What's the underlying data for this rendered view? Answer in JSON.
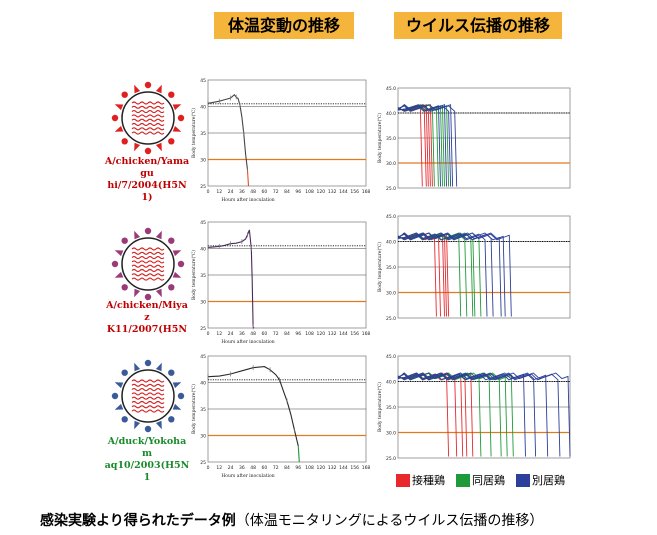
{
  "headers": {
    "left": "体温変動の推移",
    "right": "ウイルス伝播の推移"
  },
  "viruses": [
    {
      "name_lines": [
        "A/chicken/Yamagu",
        "hi/7/2004(H5N1)"
      ],
      "label_color": "#c00000",
      "spike_color": "#e02020"
    },
    {
      "name_lines": [
        "A/chicken/Miyaz",
        "K11/2007(H5N"
      ],
      "label_color": "#c00000",
      "spike_color": "#9a3a7a"
    },
    {
      "name_lines": [
        "A/duck/Yokoham",
        "aq10/2003(H5N1"
      ],
      "label_color": "#1a8a2a",
      "spike_color": "#3a5a9a"
    }
  ],
  "legend": [
    {
      "label": "接種鶏",
      "color": "#e8282d"
    },
    {
      "label": "同居鶏",
      "color": "#1e9a3a"
    },
    {
      "label": "別居鶏",
      "color": "#2c3f9a"
    }
  ],
  "caption": {
    "bold": "感染実験より得られたデータ例",
    "normal": "（体温モニタリングによるウイルス伝播の推移）"
  },
  "chart_data": [
    {
      "type": "line",
      "ylabel": "Body temperature(℃)",
      "xlabel": "Hours after inoculation",
      "yticks": [
        "45",
        "40",
        "35",
        "30",
        "25"
      ],
      "ylim": [
        25,
        45
      ],
      "xticks": [
        "0",
        "12",
        "24",
        "36",
        "48",
        "60",
        "72",
        "84",
        "96",
        "108",
        "120",
        "132",
        "144",
        "156",
        "168"
      ],
      "xlim": [
        0,
        168
      ],
      "reference_lines": [
        40.5,
        30
      ],
      "series": [
        {
          "values_x": [
            0,
            6,
            12,
            18,
            24,
            28,
            30,
            32,
            34,
            36,
            38,
            40,
            42
          ],
          "values_y": [
            40.6,
            40.8,
            41.0,
            41.3,
            41.6,
            42.2,
            41.8,
            41.5,
            40.2,
            38.0,
            35.0,
            31.0,
            28.0
          ]
        }
      ]
    },
    {
      "type": "line",
      "ylabel": "Body temperature(℃)",
      "xlabel": "Hours after inoculation",
      "yticks": [
        "45",
        "40",
        "35",
        "30",
        "25"
      ],
      "ylim": [
        25,
        45
      ],
      "xticks": [
        "0",
        "12",
        "24",
        "36",
        "48",
        "60",
        "72",
        "84",
        "96",
        "108",
        "120",
        "132",
        "144",
        "156",
        "168"
      ],
      "xlim": [
        0,
        168
      ],
      "reference_lines": [
        40.5,
        30
      ],
      "series": [
        {
          "values_x": [
            0,
            6,
            12,
            18,
            24,
            30,
            36,
            40,
            42,
            44,
            46,
            47,
            48
          ],
          "values_y": [
            40.2,
            40.3,
            40.4,
            40.6,
            40.9,
            41.0,
            41.3,
            41.8,
            42.6,
            43.5,
            40.0,
            34.0,
            25.2
          ]
        }
      ]
    },
    {
      "type": "line",
      "ylabel": "Body temperature(℃)",
      "xlabel": "Hours after inoculation",
      "yticks": [
        "45",
        "40",
        "35",
        "30",
        "25"
      ],
      "ylim": [
        25,
        45
      ],
      "xticks": [
        "0",
        "12",
        "24",
        "36",
        "48",
        "60",
        "72",
        "84",
        "96",
        "108",
        "120",
        "132",
        "144",
        "156",
        "168"
      ],
      "xlim": [
        0,
        168
      ],
      "reference_lines": [
        40.5,
        30
      ],
      "series": [
        {
          "values_x": [
            0,
            12,
            24,
            36,
            48,
            60,
            66,
            72,
            76,
            80,
            84,
            88,
            92,
            96
          ],
          "values_y": [
            41.1,
            41.2,
            41.6,
            42.2,
            42.8,
            43.0,
            42.4,
            41.5,
            40.5,
            38.5,
            36.5,
            34.0,
            31.0,
            28.0
          ]
        }
      ]
    },
    {
      "type": "line",
      "ylabel": "Body temperature(℃)",
      "yticks": [
        "45.0",
        "40.0",
        "35.0",
        "30.0",
        "25.0"
      ],
      "ylim": [
        25,
        45
      ],
      "reference_lines": [
        40,
        30
      ],
      "groups": [
        {
          "legend": "接種鶏",
          "drop_hours": [
            22,
            26,
            28,
            30,
            32
          ]
        },
        {
          "legend": "同居鶏",
          "drop_hours": [
            34,
            38,
            42,
            44,
            48
          ]
        },
        {
          "legend": "別居鶏",
          "drop_hours": [
            40,
            46,
            50,
            52,
            56
          ]
        }
      ]
    },
    {
      "type": "line",
      "ylabel": "Body temperature(℃)",
      "yticks": [
        "45.0",
        "40.0",
        "35.0",
        "30.0",
        "25.0"
      ],
      "ylim": [
        25,
        45
      ],
      "reference_lines": [
        40,
        30
      ],
      "groups": [
        {
          "legend": "接種鶏",
          "drop_hours": [
            36,
            40,
            44,
            46,
            48
          ]
        },
        {
          "legend": "同居鶏",
          "drop_hours": [
            60,
            66,
            72,
            74,
            80
          ]
        },
        {
          "legend": "別居鶏",
          "drop_hours": [
            86,
            92,
            100,
            104,
            110
          ]
        }
      ]
    },
    {
      "type": "line",
      "ylabel": "Body temperature(℃)",
      "yticks": [
        "45.0",
        "40.0",
        "35.0",
        "30.0",
        "25.0"
      ],
      "ylim": [
        25,
        45
      ],
      "reference_lines": [
        40,
        30
      ],
      "groups": [
        {
          "legend": "接種鶏",
          "drop_hours": [
            48,
            56,
            62,
            66,
            72
          ]
        },
        {
          "legend": "同居鶏",
          "drop_hours": [
            80,
            90,
            100,
            106,
            112
          ]
        },
        {
          "legend": "別居鶏",
          "drop_hours": [
            124,
            134,
            146,
            158,
            168
          ]
        }
      ]
    }
  ]
}
